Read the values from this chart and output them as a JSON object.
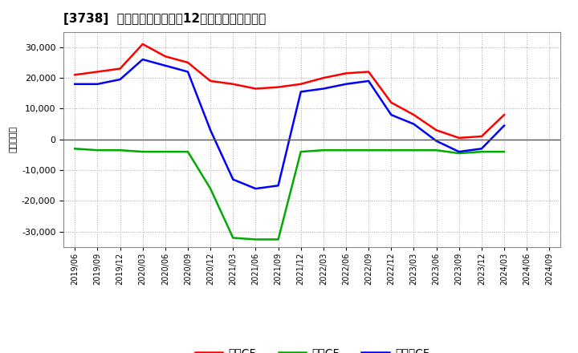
{
  "title": "[3738]  キャッシュフローの12か月移動合計の推移",
  "ylabel": "（百万円）",
  "bg_color": "#ffffff",
  "plot_bg_color": "#ffffff",
  "grid_color": "#aaaaaa",
  "zero_line_color": "#555555",
  "x_labels": [
    "2019/06",
    "2019/09",
    "2019/12",
    "2020/03",
    "2020/06",
    "2020/09",
    "2020/12",
    "2021/03",
    "2021/06",
    "2021/09",
    "2021/12",
    "2022/03",
    "2022/06",
    "2022/09",
    "2022/12",
    "2023/03",
    "2023/06",
    "2023/09",
    "2023/12",
    "2024/03",
    "2024/06",
    "2024/09"
  ],
  "eigyo_cf": [
    21000,
    22000,
    23000,
    31000,
    27000,
    25000,
    19000,
    18000,
    16500,
    17000,
    18000,
    20000,
    21500,
    22000,
    12000,
    8000,
    3000,
    500,
    1000,
    8000,
    null,
    null
  ],
  "toshi_cf": [
    -3000,
    -3500,
    -3500,
    -4000,
    -4000,
    -4000,
    -16000,
    -32000,
    -32500,
    -32500,
    -4000,
    -3500,
    -3500,
    -3500,
    -3500,
    -3500,
    -3500,
    -4500,
    -4000,
    -4000,
    null,
    null
  ],
  "free_cf": [
    18000,
    18000,
    19500,
    26000,
    24000,
    22000,
    3000,
    -13000,
    -16000,
    -15000,
    15500,
    16500,
    18000,
    19000,
    8000,
    5000,
    -500,
    -4000,
    -3000,
    4500,
    null,
    null
  ],
  "eigyo_color": "#ff0000",
  "toshi_color": "#00aa00",
  "free_color": "#0000ff",
  "ylim": [
    -35000,
    35000
  ],
  "yticks": [
    -30000,
    -20000,
    -10000,
    0,
    10000,
    20000,
    30000
  ],
  "legend_labels": [
    "営業CF",
    "投資CF",
    "フリーCF"
  ]
}
